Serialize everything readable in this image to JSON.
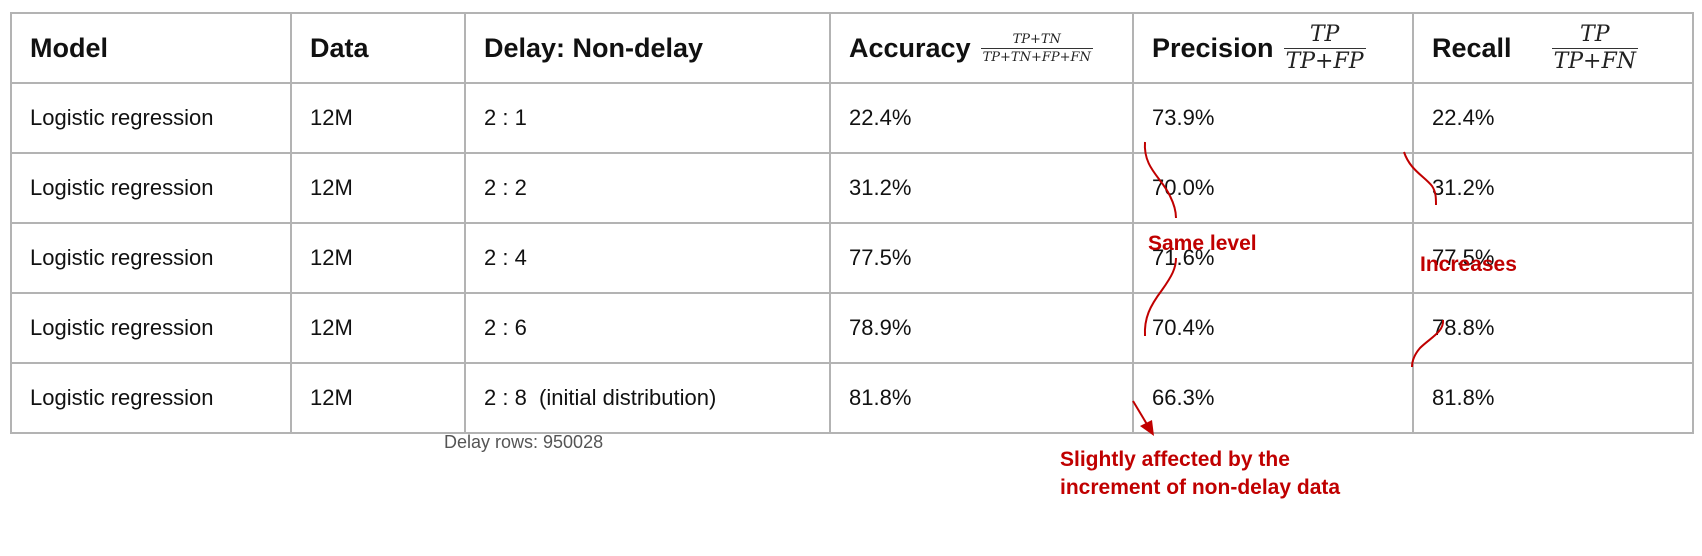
{
  "table": {
    "headers": {
      "model": "Model",
      "data": "Data",
      "ratio": "Delay: Non-delay",
      "accuracy": "Accuracy",
      "precision": "Precision",
      "recall": "Recall"
    },
    "formulas": {
      "accuracy": {
        "numerator": "TP+TN",
        "denominator": "TP+TN+FP+FN"
      },
      "precision": {
        "numerator": "TP",
        "denominator": "TP+FP"
      },
      "recall": {
        "numerator": "TP",
        "denominator": "TP+FN"
      }
    },
    "rows": [
      {
        "model": "Logistic regression",
        "data": "12M",
        "ratio": "2 : 1",
        "accuracy": "22.4%",
        "precision": "73.9%",
        "recall": "22.4%"
      },
      {
        "model": "Logistic regression",
        "data": "12M",
        "ratio": "2 : 2",
        "accuracy": "31.2%",
        "precision": "70.0%",
        "recall": "31.2%"
      },
      {
        "model": "Logistic regression",
        "data": "12M",
        "ratio": "2 : 4",
        "accuracy": "77.5%",
        "precision": "71.6%",
        "recall": "77.5%"
      },
      {
        "model": "Logistic regression",
        "data": "12M",
        "ratio": "2 : 6",
        "accuracy": "78.9%",
        "precision": "70.4%",
        "recall": "78.8%"
      },
      {
        "model": "Logistic regression",
        "data": "12M",
        "ratio": "2 : 8  (initial distribution)",
        "accuracy": "81.8%",
        "precision": "66.3%",
        "recall": "81.8%"
      }
    ]
  },
  "caption": "Delay rows: 950028",
  "annotations": {
    "same_level": "Same level",
    "increases": "Increases",
    "slightly_line1": "Slightly affected by the",
    "slightly_line2": "increment of non-delay data"
  },
  "colors": {
    "annotation": "#c00000",
    "border": "#b3b3b3"
  }
}
